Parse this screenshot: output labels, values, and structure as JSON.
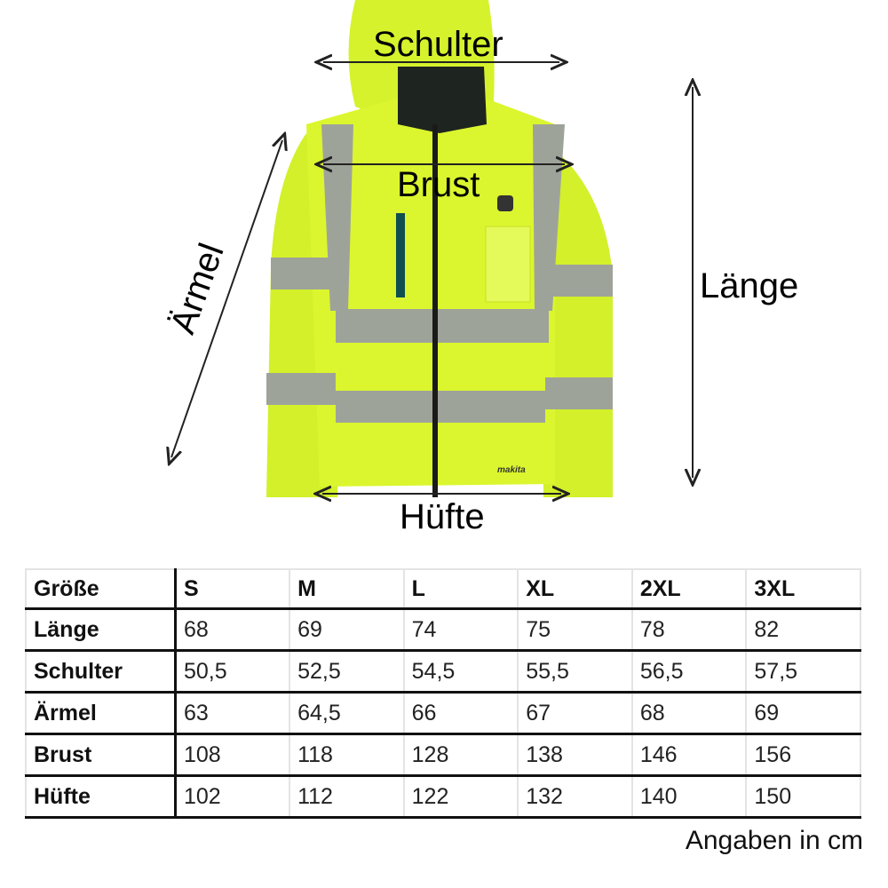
{
  "labels": {
    "shoulder": "Schulter",
    "chest": "Brust",
    "sleeve": "Ärmel",
    "length": "Länge",
    "hip": "Hüfte"
  },
  "jacket": {
    "logo": "makita",
    "body_color": "#d9f52a",
    "reflective_color": "#9ea39a",
    "collar_color": "#1e2420"
  },
  "table": {
    "header": [
      "Größe",
      "S",
      "M",
      "L",
      "XL",
      "2XL",
      "3XL"
    ],
    "rows": [
      {
        "label": "Länge",
        "values": [
          "68",
          "69",
          "74",
          "75",
          "78",
          "82"
        ]
      },
      {
        "label": "Schulter",
        "values": [
          "50,5",
          "52,5",
          "54,5",
          "55,5",
          "56,5",
          "57,5"
        ]
      },
      {
        "label": "Ärmel",
        "values": [
          "63",
          "64,5",
          "66",
          "67",
          "68",
          "69"
        ]
      },
      {
        "label": "Brust",
        "values": [
          "108",
          "118",
          "128",
          "138",
          "146",
          "156"
        ]
      },
      {
        "label": "Hüfte",
        "values": [
          "102",
          "112",
          "122",
          "132",
          "140",
          "150"
        ]
      }
    ]
  },
  "note": "Angaben in cm"
}
